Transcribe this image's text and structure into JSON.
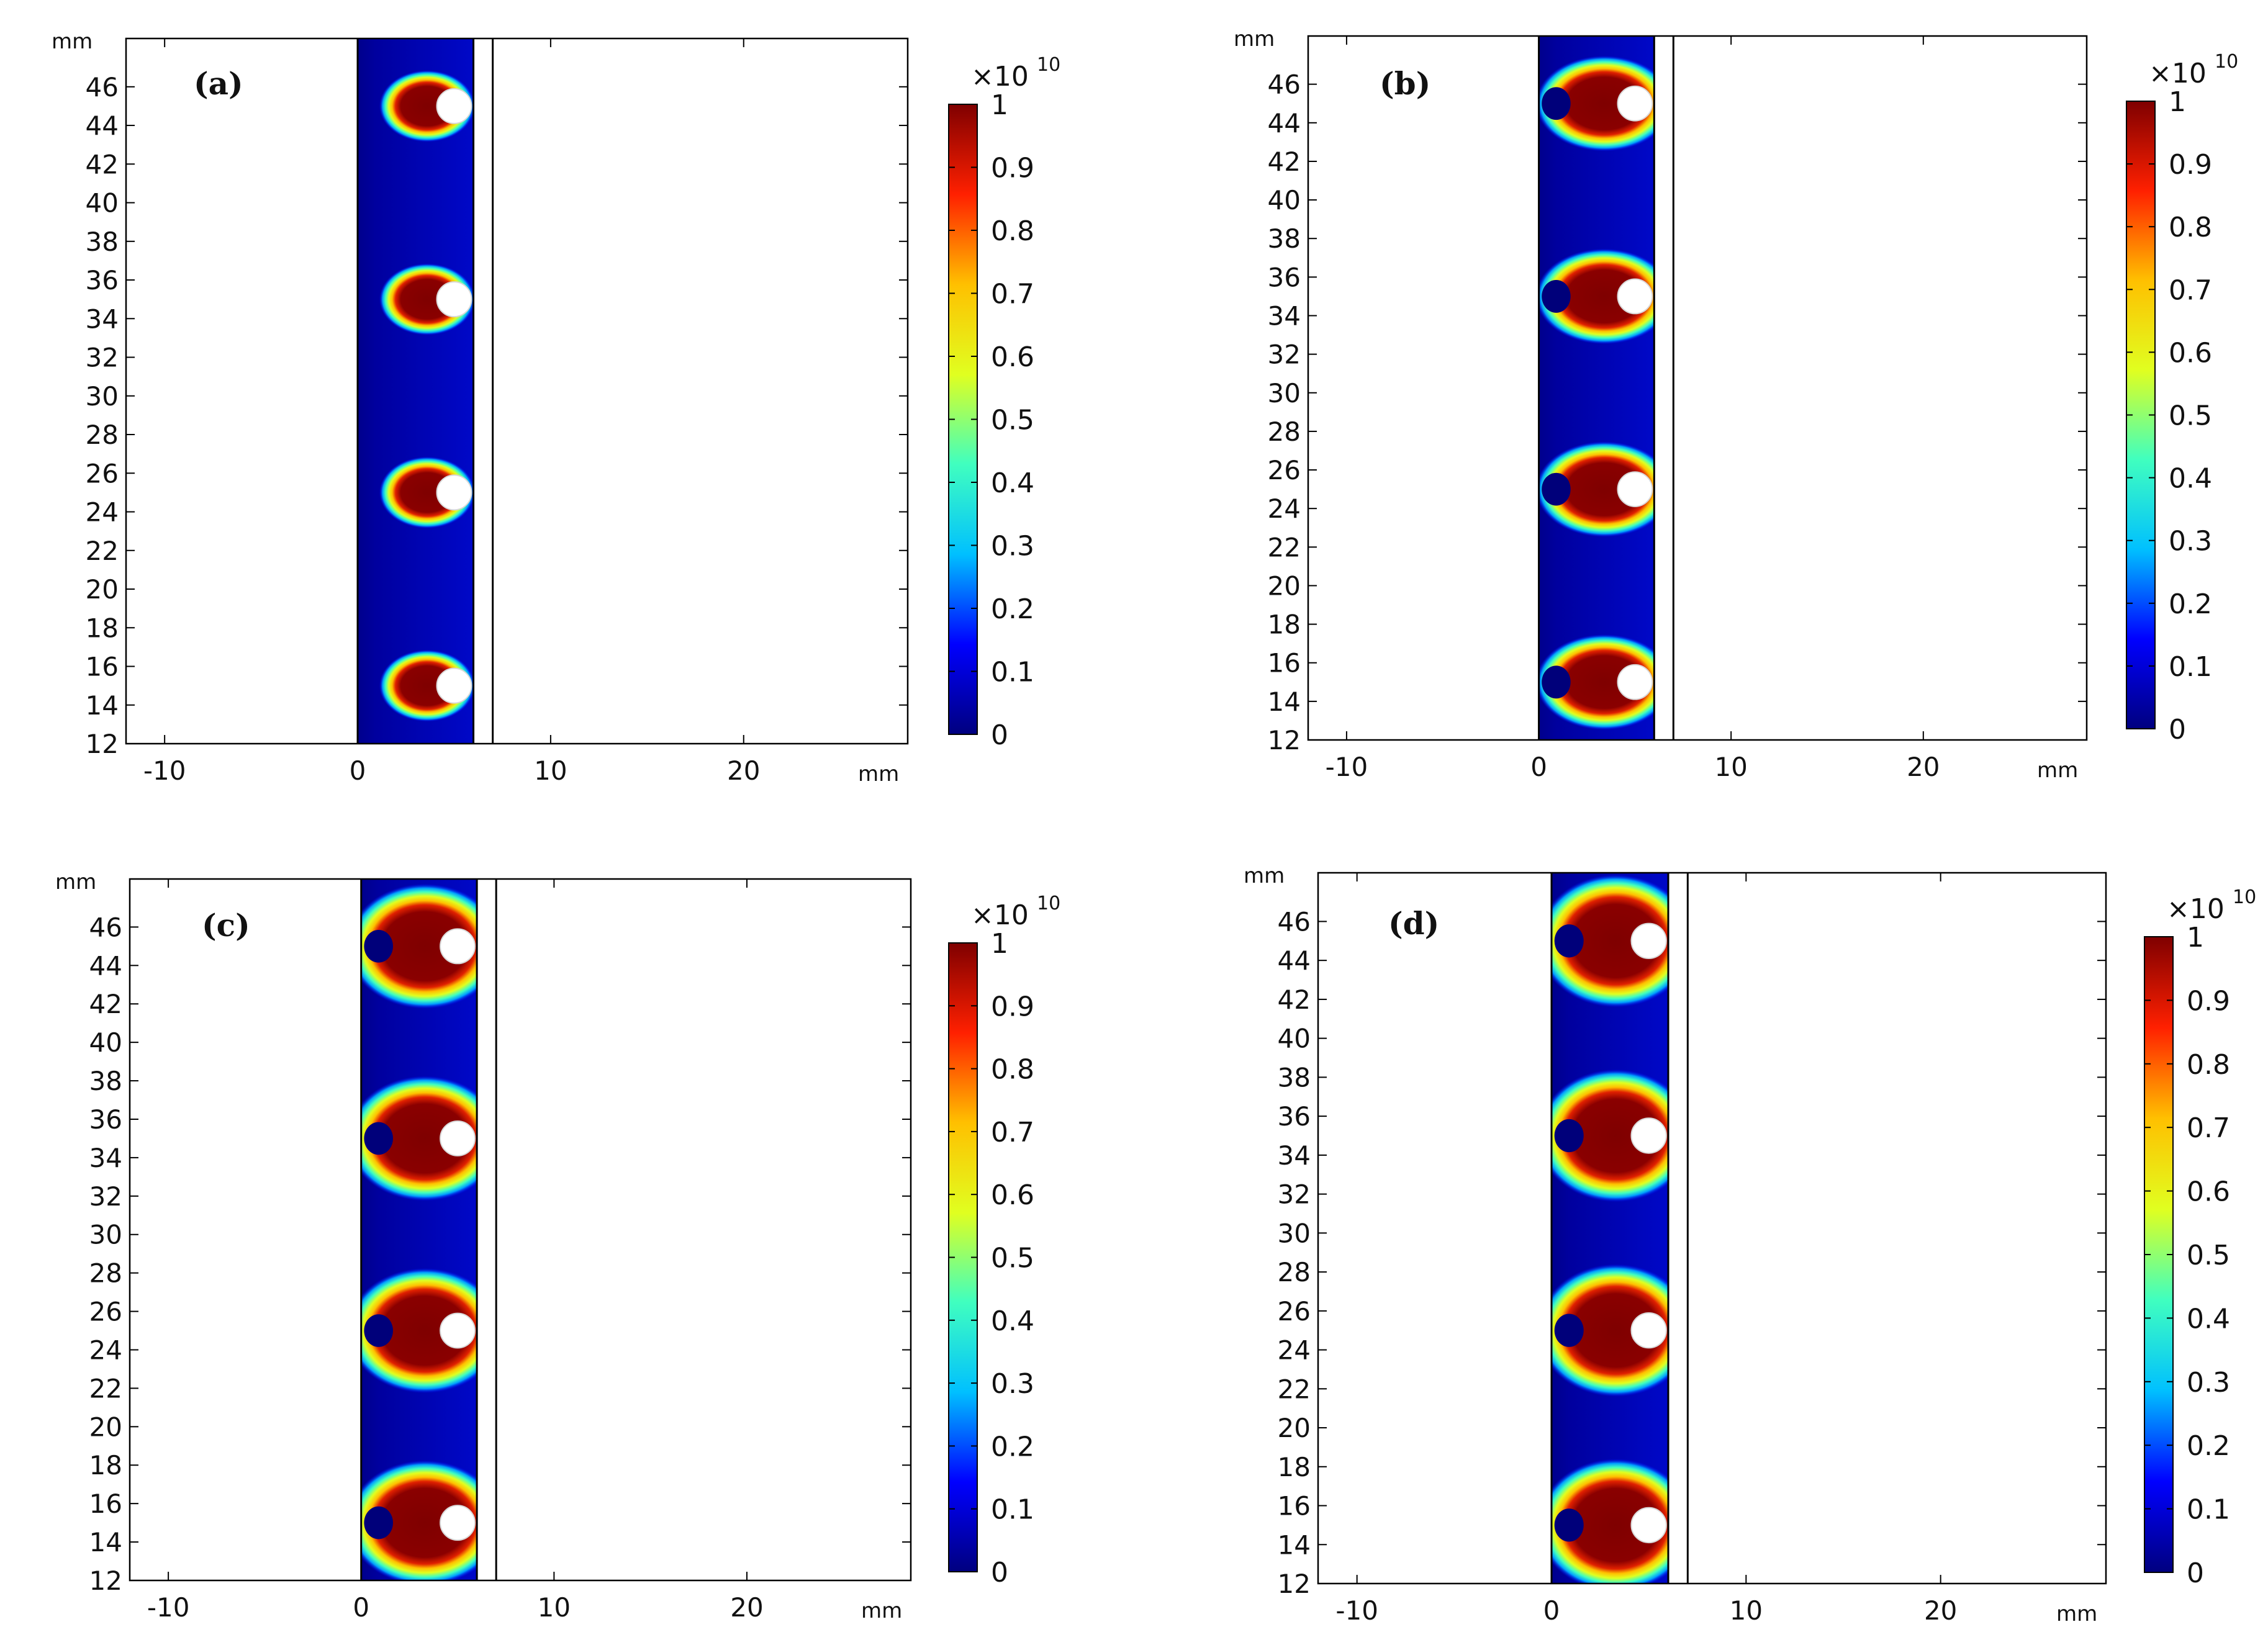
{
  "figure": {
    "colorbar": {
      "multiplier_base": "×10",
      "multiplier_exp": "10",
      "ticks": [
        {
          "value": 0,
          "label": "0"
        },
        {
          "value": 0.1,
          "label": "0.1"
        },
        {
          "value": 0.2,
          "label": "0.2"
        },
        {
          "value": 0.3,
          "label": "0.3"
        },
        {
          "value": 0.4,
          "label": "0.4"
        },
        {
          "value": 0.5,
          "label": "0.5"
        },
        {
          "value": 0.6,
          "label": "0.6"
        },
        {
          "value": 0.7,
          "label": "0.7"
        },
        {
          "value": 0.8,
          "label": "0.8"
        },
        {
          "value": 0.9,
          "label": "0.9"
        },
        {
          "value": 1,
          "label": "1"
        }
      ],
      "range": [
        0,
        1
      ],
      "colormap": [
        "#00007f",
        "#0000ff",
        "#00c0ff",
        "#40ffbf",
        "#e0ff20",
        "#ffc000",
        "#ff2000",
        "#7f0000"
      ]
    },
    "axis_unit_label": "mm"
  },
  "chart_data": [
    {
      "type": "heatmap",
      "panel_label": "(a)",
      "xlabel": "mm",
      "ylabel": "mm",
      "xlim": [
        -12,
        28.5
      ],
      "ylim": [
        12,
        48.5
      ],
      "x_ticks": [
        -10,
        0,
        10,
        20
      ],
      "y_ticks": [
        12,
        14,
        16,
        18,
        20,
        22,
        24,
        26,
        28,
        30,
        32,
        34,
        36,
        38,
        40,
        42,
        44,
        46
      ],
      "domain_x": [
        0,
        6
      ],
      "boundary_x": 7,
      "source_centers": [
        {
          "x": 5,
          "y": 45
        },
        {
          "x": 5,
          "y": 35
        },
        {
          "x": 5,
          "y": 25
        },
        {
          "x": 5,
          "y": 15
        }
      ],
      "source_radius": 0.9,
      "hot_zone": {
        "cx": 3.6,
        "rx": 1.6,
        "ry": 1.2
      },
      "max_value": 1
    },
    {
      "type": "heatmap",
      "panel_label": "(b)",
      "xlabel": "mm",
      "ylabel": "mm",
      "xlim": [
        -12,
        28.5
      ],
      "ylim": [
        12,
        48.5
      ],
      "x_ticks": [
        -10,
        0,
        10,
        20
      ],
      "y_ticks": [
        12,
        14,
        16,
        18,
        20,
        22,
        24,
        26,
        28,
        30,
        32,
        34,
        36,
        38,
        40,
        42,
        44,
        46
      ],
      "domain_x": [
        0,
        6
      ],
      "boundary_x": 7,
      "source_centers": [
        {
          "x": 5,
          "y": 45
        },
        {
          "x": 5,
          "y": 35
        },
        {
          "x": 5,
          "y": 25
        },
        {
          "x": 5,
          "y": 15
        }
      ],
      "source_radius": 0.9,
      "hot_zone": {
        "cx": 3.4,
        "rx": 2.3,
        "ry": 1.6
      },
      "max_value": 1
    },
    {
      "type": "heatmap",
      "panel_label": "(c)",
      "xlabel": "mm",
      "ylabel": "mm",
      "xlim": [
        -12,
        28.5
      ],
      "ylim": [
        12,
        48.5
      ],
      "x_ticks": [
        -10,
        0,
        10,
        20
      ],
      "y_ticks": [
        12,
        14,
        16,
        18,
        20,
        22,
        24,
        26,
        28,
        30,
        32,
        34,
        36,
        38,
        40,
        42,
        44,
        46
      ],
      "domain_x": [
        0,
        6
      ],
      "boundary_x": 7,
      "source_centers": [
        {
          "x": 5,
          "y": 45
        },
        {
          "x": 5,
          "y": 35
        },
        {
          "x": 5,
          "y": 25
        },
        {
          "x": 5,
          "y": 15
        }
      ],
      "source_radius": 0.9,
      "hot_zone": {
        "cx": 3.3,
        "rx": 2.6,
        "ry": 2.1
      },
      "max_value": 1
    },
    {
      "type": "heatmap",
      "panel_label": "(d)",
      "xlabel": "mm",
      "ylabel": "mm",
      "xlim": [
        -12,
        28.5
      ],
      "ylim": [
        12,
        48.5
      ],
      "x_ticks": [
        -10,
        0,
        10,
        20
      ],
      "y_ticks": [
        12,
        14,
        16,
        18,
        20,
        22,
        24,
        26,
        28,
        30,
        32,
        34,
        36,
        38,
        40,
        42,
        44,
        46
      ],
      "domain_x": [
        0,
        6
      ],
      "boundary_x": 7,
      "source_centers": [
        {
          "x": 5,
          "y": 45
        },
        {
          "x": 5,
          "y": 35
        },
        {
          "x": 5,
          "y": 25
        },
        {
          "x": 5,
          "y": 15
        }
      ],
      "source_radius": 0.9,
      "hot_zone": {
        "cx": 3.3,
        "rx": 2.6,
        "ry": 2.2
      },
      "max_value": 1
    }
  ]
}
